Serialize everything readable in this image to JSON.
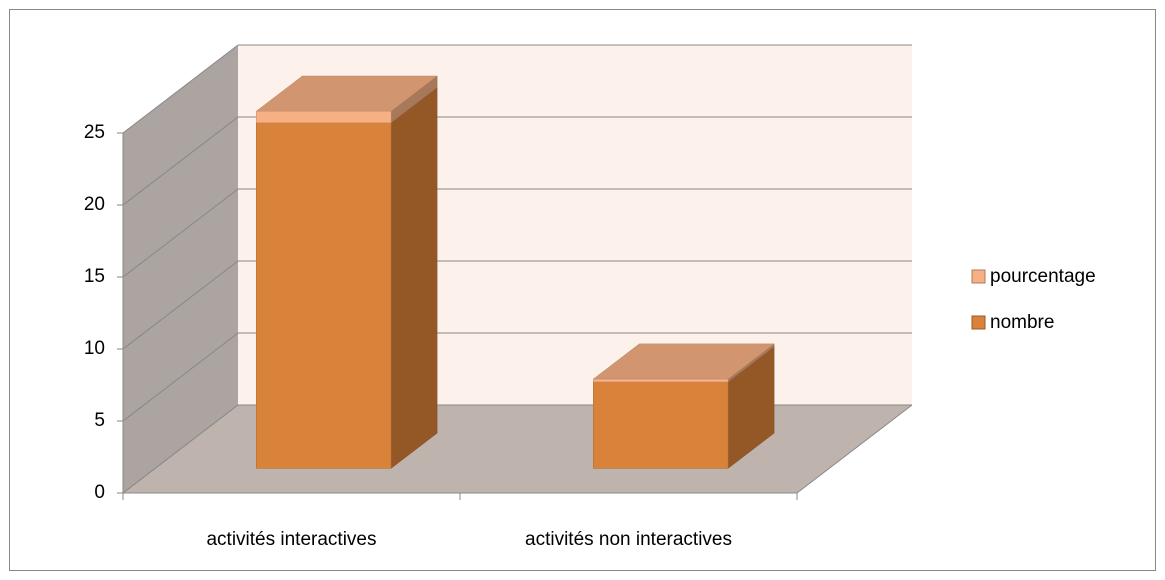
{
  "chart_data": {
    "type": "bar3d-stacked",
    "categories": [
      "activités interactives",
      "activités non interactives"
    ],
    "series": [
      {
        "name": "nombre",
        "color": "#d9823a",
        "values": [
          24,
          6
        ]
      },
      {
        "name": "pourcentage",
        "color": "#f6b084",
        "values": [
          0.8,
          0.2
        ]
      }
    ],
    "ylim": [
      0,
      25
    ],
    "yticks": [
      0,
      5,
      10,
      15,
      20,
      25
    ],
    "grid": true,
    "legend": "right"
  }
}
